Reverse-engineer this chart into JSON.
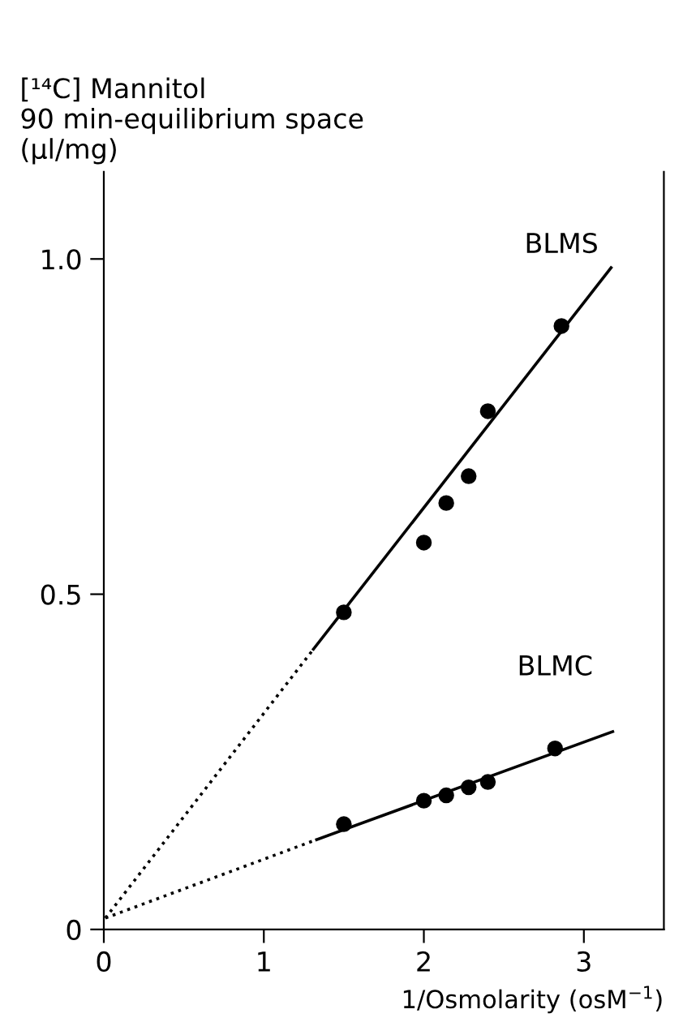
{
  "chart_data": {
    "type": "scatter",
    "ylabel": "[¹⁴C] Mannitol\n90 min-equilibrium space\n(µl/mg)",
    "xlabel": "1/Osmolarity (osM$^{−1}$)",
    "xlim": [
      0,
      3.5
    ],
    "xticks": [
      0,
      1,
      2,
      3
    ],
    "ylim": [
      0,
      1.13
    ],
    "yticks": [
      0,
      {
        "value": 0.5,
        "label": "0.5"
      },
      {
        "value": 1.0,
        "label": "1.0"
      }
    ],
    "grid": false,
    "legend": false,
    "marker": "circle",
    "series": [
      {
        "name": "BLMS",
        "color": "#000000",
        "x": [
          1.5,
          2.0,
          2.14,
          2.28,
          2.4,
          2.86
        ],
        "values": [
          0.473,
          0.577,
          0.636,
          0.676,
          0.773,
          0.9
        ]
      },
      {
        "name": "BLMC",
        "color": "#000000",
        "x": [
          1.5,
          2.0,
          2.14,
          2.28,
          2.4,
          2.82
        ],
        "values": [
          0.157,
          0.192,
          0.2,
          0.212,
          0.22,
          0.27
        ]
      },
      {
        "type": "line",
        "color": "#000000",
        "line_style": "dotted",
        "marker": "none",
        "x": [
          0.01,
          1.31
        ],
        "values": [
          0.017,
          0.418
        ]
      },
      {
        "type": "line",
        "color": "#000000",
        "line_style": "solid",
        "marker": "none",
        "x": [
          1.31,
          3.17
        ],
        "values": [
          0.418,
          0.987
        ]
      },
      {
        "type": "line",
        "color": "#000000",
        "line_style": "dotted",
        "marker": "none",
        "x": [
          0.01,
          1.33
        ],
        "values": [
          0.017,
          0.134
        ]
      },
      {
        "type": "line",
        "color": "#000000",
        "line_style": "solid",
        "marker": "none",
        "x": [
          1.33,
          3.18
        ],
        "values": [
          0.134,
          0.295
        ]
      }
    ]
  }
}
